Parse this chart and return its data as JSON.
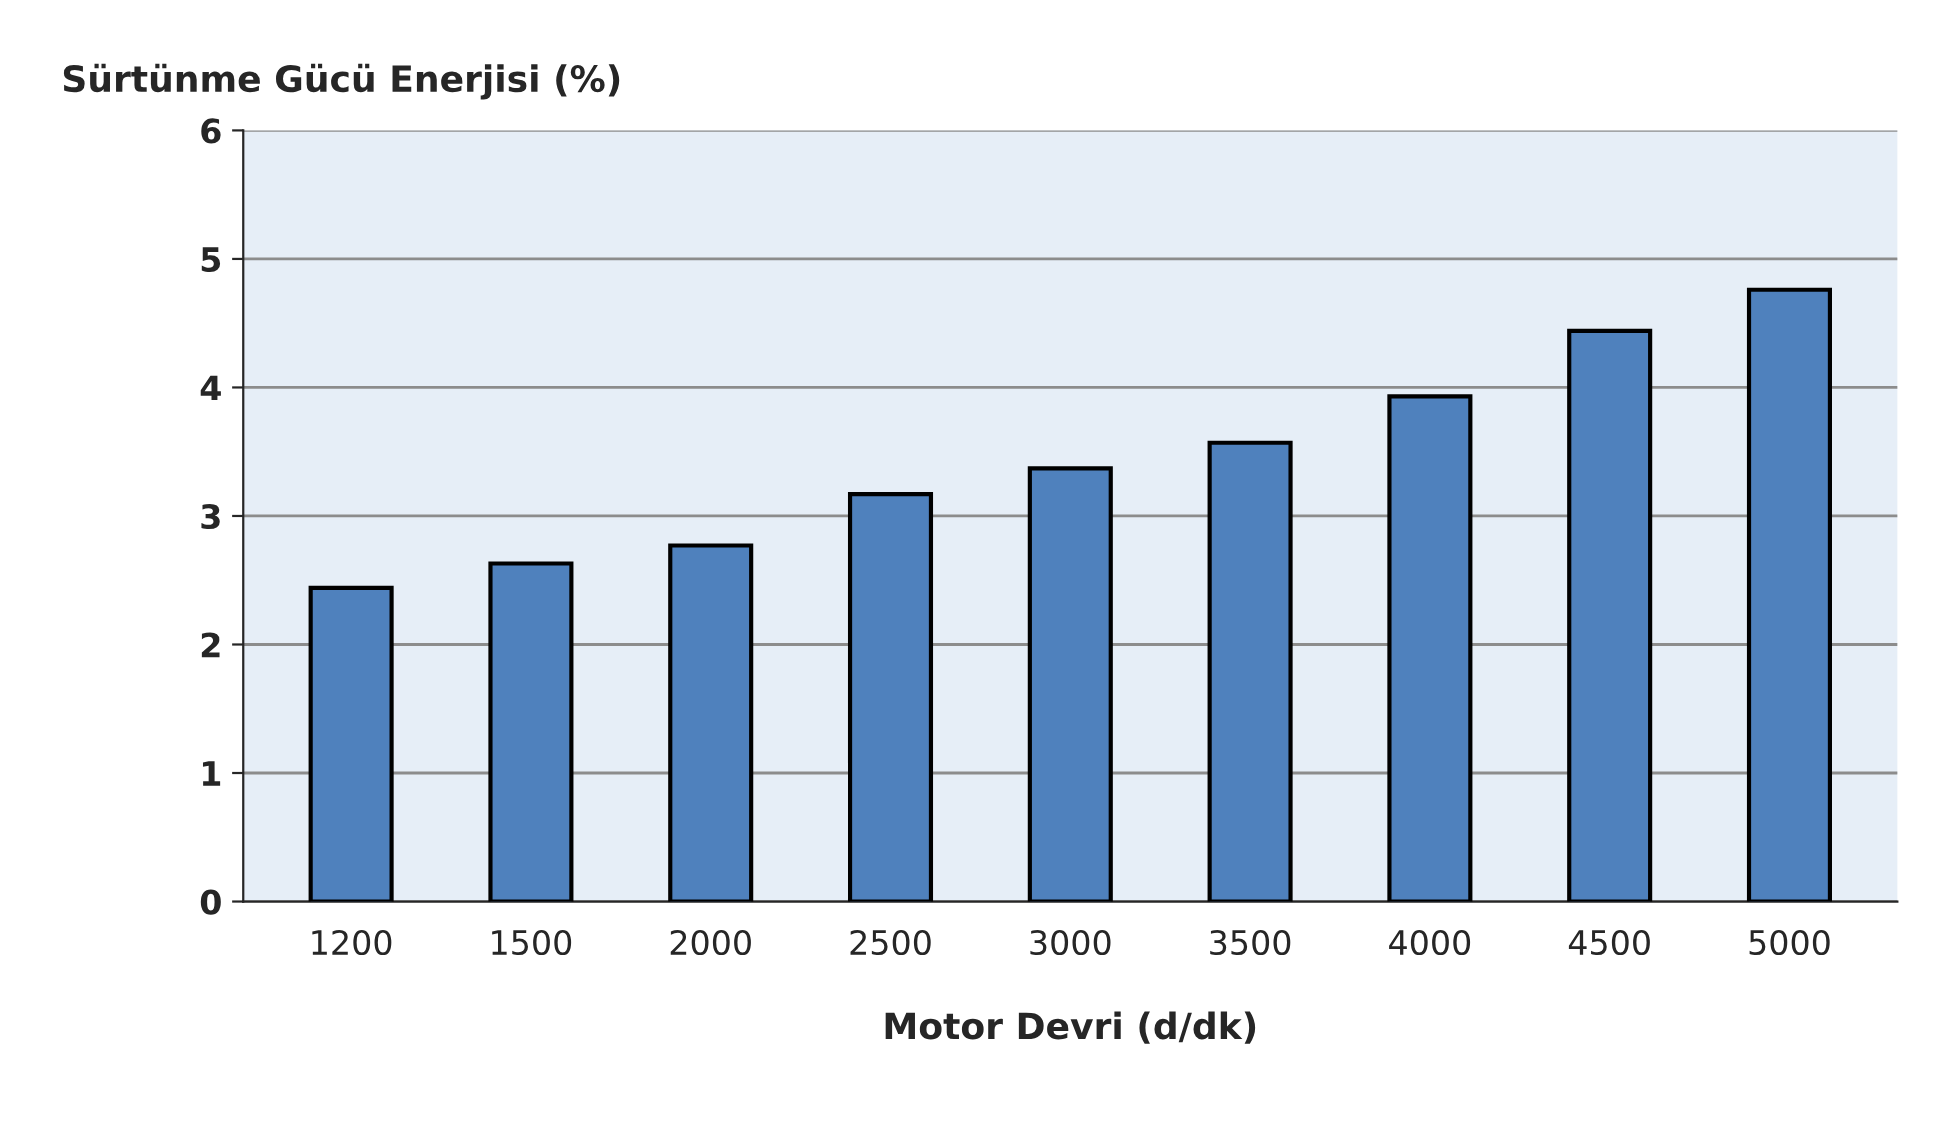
{
  "chart_data": {
    "type": "bar",
    "ylabel": "Sürtünme Gücü Enerjisi (%)",
    "xlabel": "Motor Devri (d/dk)",
    "categories": [
      "1200",
      "1500",
      "2000",
      "2500",
      "3000",
      "3500",
      "4000",
      "4500",
      "5000"
    ],
    "values": [
      2.44,
      2.63,
      2.77,
      3.17,
      3.37,
      3.57,
      3.93,
      4.44,
      4.76
    ],
    "color": "#4f81bd",
    "ylim": [
      0,
      6
    ],
    "yticks": [
      0,
      1,
      2,
      3,
      4,
      5,
      6
    ],
    "grid": "y"
  }
}
